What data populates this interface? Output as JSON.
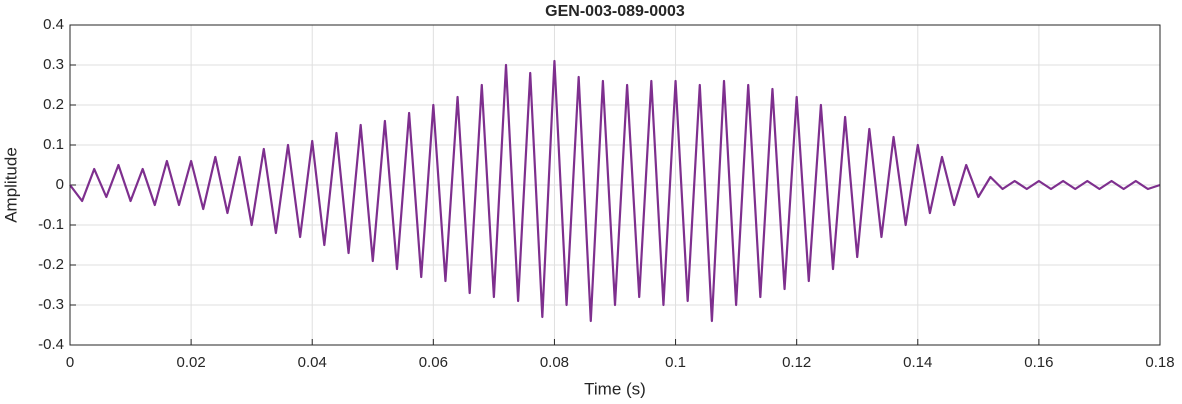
{
  "chart_data": {
    "type": "line",
    "title": "GEN-003-089-0003",
    "x_label": "Time (s)",
    "y_label": "Amplitude",
    "color": "#7e2f8e",
    "grid": true,
    "xlim": [
      0,
      0.18
    ],
    "ylim": [
      -0.4,
      0.4
    ],
    "xticks": [
      0,
      0.02,
      0.04,
      0.06,
      0.08,
      0.1,
      0.12,
      0.14,
      0.16,
      0.18
    ],
    "yticks": [
      -0.4,
      -0.3,
      -0.2,
      -0.1,
      0,
      0.1,
      0.2,
      0.3,
      0.4
    ],
    "x": [
      0,
      0.002,
      0.004,
      0.006,
      0.008,
      0.01,
      0.012,
      0.014,
      0.016,
      0.018,
      0.02,
      0.022,
      0.024,
      0.026,
      0.028,
      0.03,
      0.032,
      0.034,
      0.036,
      0.038,
      0.04,
      0.042,
      0.044,
      0.046,
      0.048,
      0.05,
      0.052,
      0.054,
      0.056,
      0.058,
      0.06,
      0.062,
      0.064,
      0.066,
      0.068,
      0.07,
      0.072,
      0.074,
      0.076,
      0.078,
      0.08,
      0.082,
      0.084,
      0.086,
      0.088,
      0.09,
      0.092,
      0.094,
      0.096,
      0.098,
      0.1,
      0.102,
      0.104,
      0.106,
      0.108,
      0.11,
      0.112,
      0.114,
      0.116,
      0.118,
      0.12,
      0.122,
      0.124,
      0.126,
      0.128,
      0.13,
      0.132,
      0.134,
      0.136,
      0.138,
      0.14,
      0.142,
      0.144,
      0.146,
      0.148,
      0.15,
      0.152,
      0.154,
      0.156,
      0.158,
      0.16,
      0.162,
      0.164,
      0.166,
      0.168,
      0.17,
      0.172,
      0.174,
      0.176,
      0.178,
      0.18
    ],
    "values": [
      0,
      -0.04,
      0.04,
      -0.03,
      0.05,
      -0.04,
      0.04,
      -0.05,
      0.06,
      -0.05,
      0.06,
      -0.06,
      0.07,
      -0.07,
      0.07,
      -0.1,
      0.09,
      -0.12,
      0.1,
      -0.13,
      0.11,
      -0.15,
      0.13,
      -0.17,
      0.15,
      -0.19,
      0.16,
      -0.21,
      0.18,
      -0.23,
      0.2,
      -0.24,
      0.22,
      -0.27,
      0.25,
      -0.28,
      0.3,
      -0.29,
      0.28,
      -0.33,
      0.31,
      -0.3,
      0.27,
      -0.34,
      0.26,
      -0.3,
      0.25,
      -0.28,
      0.26,
      -0.3,
      0.26,
      -0.29,
      0.25,
      -0.34,
      0.26,
      -0.3,
      0.25,
      -0.28,
      0.24,
      -0.26,
      0.22,
      -0.24,
      0.2,
      -0.21,
      0.17,
      -0.18,
      0.14,
      -0.13,
      0.12,
      -0.1,
      0.1,
      -0.07,
      0.07,
      -0.05,
      0.05,
      -0.03,
      0.02,
      -0.01,
      0.01,
      -0.01,
      0.01,
      -0.01,
      0.01,
      -0.01,
      0.01,
      -0.01,
      0.01,
      -0.01,
      0.01,
      -0.01,
      0
    ]
  }
}
